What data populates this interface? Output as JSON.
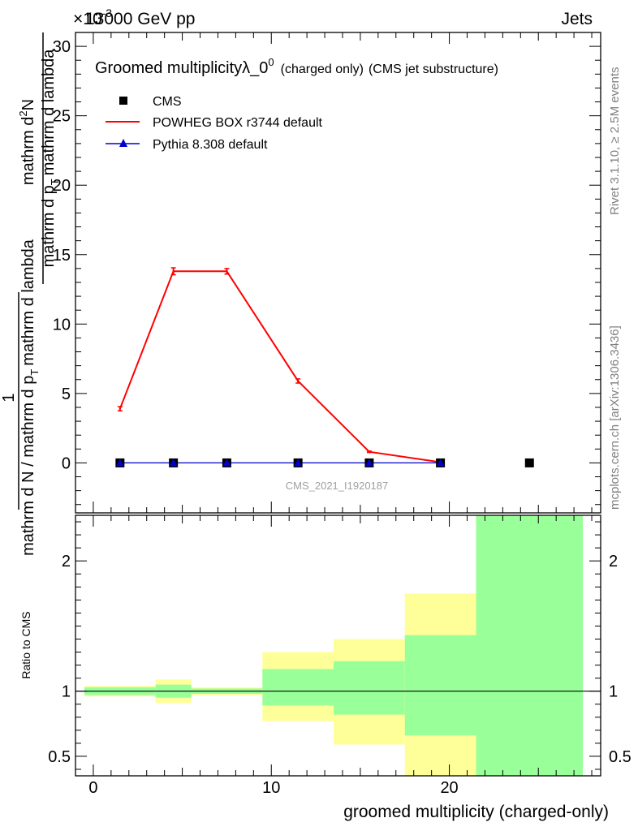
{
  "header": {
    "left": "13000 GeV pp",
    "right": "Jets",
    "exponent": "×10",
    "exponent_power": "-3"
  },
  "side_labels": {
    "rivet": "Rivet 3.1.10, ≥ 2.5M events",
    "mcplots": "mcplots.cern.ch [arXiv:1306.3436]"
  },
  "watermark": "CMS_2021_I1920187",
  "main_title": {
    "text": "Groomed multiplicityλ_0",
    "sup": "0",
    "small": "(charged only)",
    "rest": "(CMS jet substructure)"
  },
  "legend": {
    "cms": "CMS",
    "powheg": "POWHEG BOX r3744 default",
    "pythia": "Pythia 8.308 default"
  },
  "ylabel_top": {
    "numerator": "mathrm d",
    "numerator_sup": "2",
    "numerator_end": "N",
    "denominator": "mathrm d p",
    "denominator_sub": "T",
    "denominator_end": "mathrm d lambda",
    "prefix_num": "1",
    "prefix_den": "mathrm d N / mathrm d p",
    "prefix_den_sub": "T",
    "prefix_den_end": "mathrm d lambda"
  },
  "ylabel_ratio": "Ratio to CMS",
  "xlabel": "groomed multiplicity (charged-only)",
  "colors": {
    "powheg": "#ff0000",
    "pythia": "#0000cc",
    "cms": "#000000",
    "band_inner": "#99ff99",
    "band_outer": "#ffff99"
  },
  "chart_data": {
    "type": "line",
    "x_range": [
      -1,
      28.5
    ],
    "x_ticks": [
      "0",
      "10",
      "20"
    ],
    "main_panel": {
      "y_range": [
        -3.6,
        31
      ],
      "y_ticks": [
        "0",
        "5",
        "10",
        "15",
        "20",
        "25",
        "30"
      ],
      "y_scale_factor": "×10^-3",
      "series": [
        {
          "name": "CMS",
          "marker": "square",
          "x": [
            1.5,
            4.5,
            7.5,
            11.5,
            15.5,
            19.5,
            24.5
          ],
          "y": [
            0.00025,
            0.00045,
            0.00035,
            0.0003,
            0.00025,
            0.0002,
            0.0001
          ]
        },
        {
          "name": "POWHEG BOX r3744 default",
          "marker": "line",
          "x": [
            1.5,
            4.5,
            7.5,
            11.5,
            15.5,
            19.5
          ],
          "y": [
            3.9,
            13.8,
            13.8,
            5.9,
            0.8,
            0.05
          ],
          "yerr": [
            0.15,
            0.25,
            0.2,
            0.15,
            0.05,
            0.02
          ]
        },
        {
          "name": "Pythia 8.308 default",
          "marker": "triangle",
          "x": [
            1.5,
            4.5,
            7.5,
            11.5,
            15.5,
            19.5
          ],
          "y": [
            0.00025,
            0.00045,
            0.00035,
            0.0003,
            0.00025,
            0.0002
          ]
        }
      ]
    },
    "ratio_panel": {
      "y_range": [
        0.35,
        2.35
      ],
      "y_ticks": [
        "0.5",
        "1",
        "2"
      ],
      "reference_line": 1,
      "bins": [
        {
          "x_lo": -0.5,
          "x_hi": 3.5,
          "inner": [
            0.97,
            1.03
          ],
          "outer": [
            0.96,
            1.04
          ]
        },
        {
          "x_lo": 3.5,
          "x_hi": 5.5,
          "inner": [
            0.95,
            1.05
          ],
          "outer": [
            0.91,
            1.09
          ]
        },
        {
          "x_lo": 5.5,
          "x_hi": 9.5,
          "inner": [
            0.98,
            1.02
          ],
          "outer": [
            0.97,
            1.03
          ]
        },
        {
          "x_lo": 9.5,
          "x_hi": 13.5,
          "inner": [
            0.89,
            1.17
          ],
          "outer": [
            0.77,
            1.3
          ]
        },
        {
          "x_lo": 13.5,
          "x_hi": 17.5,
          "inner": [
            0.82,
            1.23
          ],
          "outer": [
            0.59,
            1.4
          ]
        },
        {
          "x_lo": 17.5,
          "x_hi": 21.5,
          "inner": [
            0.66,
            1.43
          ],
          "outer": [
            0.35,
            1.75
          ]
        },
        {
          "x_lo": 21.5,
          "x_hi": 27.5,
          "inner": [
            0.35,
            2.35
          ],
          "outer": [
            0.35,
            2.35
          ]
        }
      ]
    }
  }
}
